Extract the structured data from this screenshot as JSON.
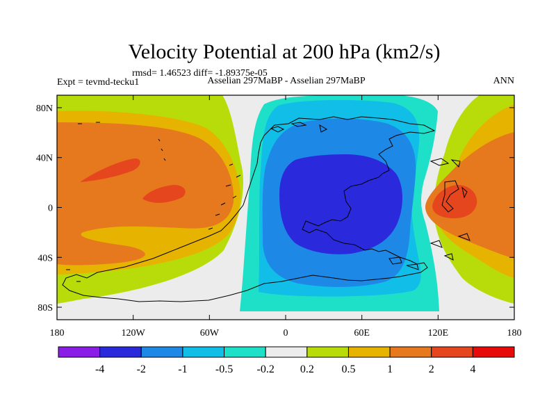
{
  "chart_data": {
    "type": "heatmap",
    "title": "Velocity Potential at 200 hPa (km2/s)",
    "stats_line": "rmsd= 1.46523 diff= -1.89375e-05",
    "left_label": "Expt = tevmd-tecku1",
    "center_label": "Asselian 297MaBP - Asselian 297MaBP",
    "right_label": "ANN",
    "xticks": [
      "180",
      "120W",
      "60W",
      "0",
      "60E",
      "120E",
      "180"
    ],
    "yticks": [
      "80N",
      "40N",
      "0",
      "40S",
      "80S"
    ],
    "xlim": [
      -180,
      180
    ],
    "ylim": [
      -90,
      90
    ],
    "colorbar_labels": [
      "-4",
      "-2",
      "-1",
      "-0.5",
      "-0.2",
      "0.2",
      "0.5",
      "1",
      "2",
      "4"
    ],
    "colorbar_colors": [
      "#8a1ee6",
      "#2a2adc",
      "#1e88e6",
      "#11bee8",
      "#1ee0c8",
      "#ececec",
      "#b8dc0a",
      "#e6b400",
      "#e6781e",
      "#e6461e",
      "#e60a0a"
    ],
    "levels": [
      -4,
      -2,
      -1,
      -0.5,
      -0.2,
      0.2,
      0.5,
      1,
      2,
      4
    ]
  }
}
